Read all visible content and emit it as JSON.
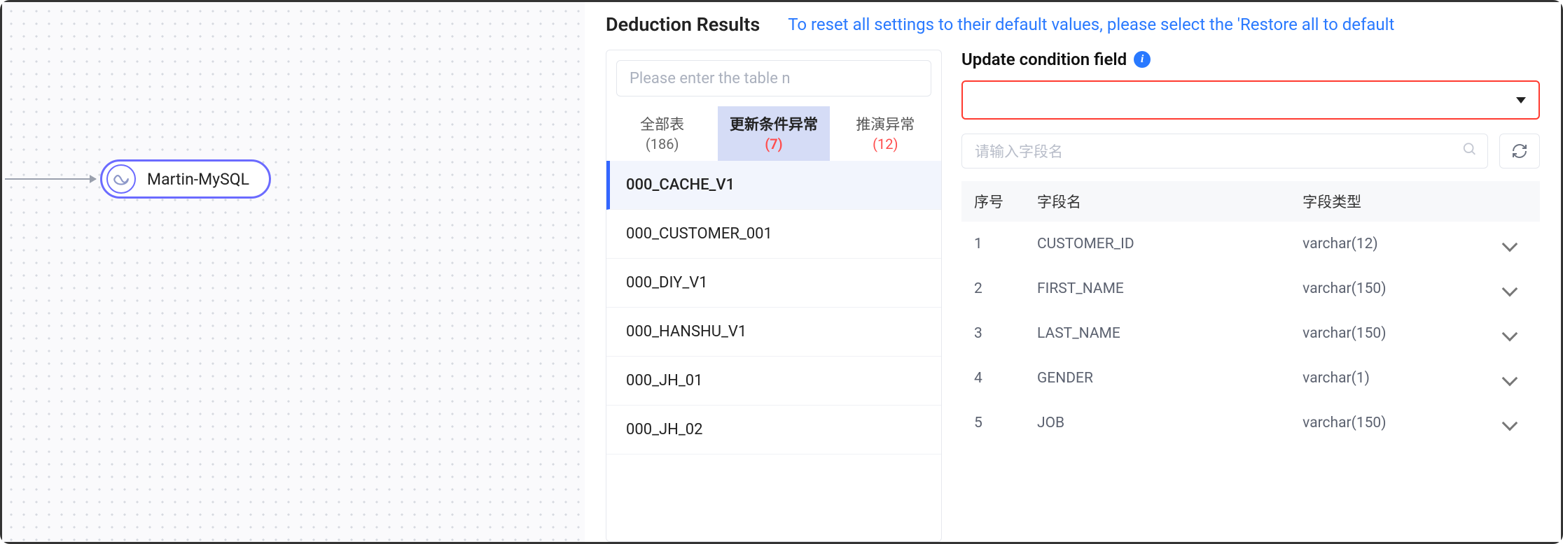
{
  "canvas": {
    "node_label": "Martin-MySQL"
  },
  "panel": {
    "title": "Deduction Results",
    "reset_text": "To reset all settings to their default values, please select the 'Restore all to default"
  },
  "tablelist": {
    "search_placeholder": "Please enter the table n",
    "tabs": [
      {
        "label": "全部表",
        "count": "(186)",
        "err": false
      },
      {
        "label": "更新条件异常",
        "count": "(7)",
        "err": true
      },
      {
        "label": "推演异常",
        "count": "(12)",
        "err": true
      }
    ],
    "active_tab": 1,
    "items": [
      "000_CACHE_V1",
      "000_CUSTOMER_001",
      "000_DIY_V1",
      "000_HANSHU_V1",
      "000_JH_01",
      "000_JH_02"
    ],
    "selected_index": 0
  },
  "fields": {
    "cond_label": "Update condition field",
    "field_search_placeholder": "请输入字段名",
    "head": {
      "idx": "序号",
      "name": "字段名",
      "type": "字段类型"
    },
    "rows": [
      {
        "idx": "1",
        "name": "CUSTOMER_ID",
        "type": "varchar(12)"
      },
      {
        "idx": "2",
        "name": "FIRST_NAME",
        "type": "varchar(150)"
      },
      {
        "idx": "3",
        "name": "LAST_NAME",
        "type": "varchar(150)"
      },
      {
        "idx": "4",
        "name": "GENDER",
        "type": "varchar(1)"
      },
      {
        "idx": "5",
        "name": "JOB",
        "type": "varchar(150)"
      }
    ]
  }
}
